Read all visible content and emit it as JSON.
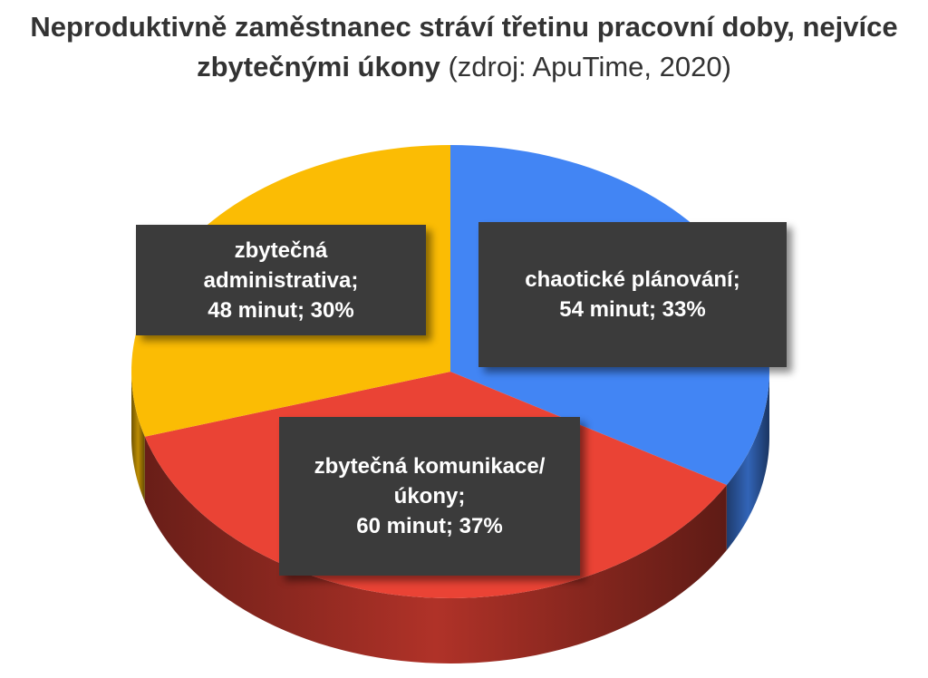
{
  "chart_data": {
    "type": "pie3d",
    "title": "Neproduktivně zaměstnanec stráví třetinu pracovní doby, nejvíce zbytečnými úkony",
    "source": "(zdroj: ApuTime, 2020)",
    "categories": [
      "chaotické plánování;",
      "zbytečná komunikace/úkony;",
      "zbytečná administrativa;"
    ],
    "values": [
      54,
      60,
      48
    ],
    "value_labels": [
      "54 minut; 33%",
      "60 minut; 37%",
      "48 minut; 30%"
    ],
    "colors": [
      "#4285f4",
      "#ea4335",
      "#fbbc04"
    ]
  }
}
